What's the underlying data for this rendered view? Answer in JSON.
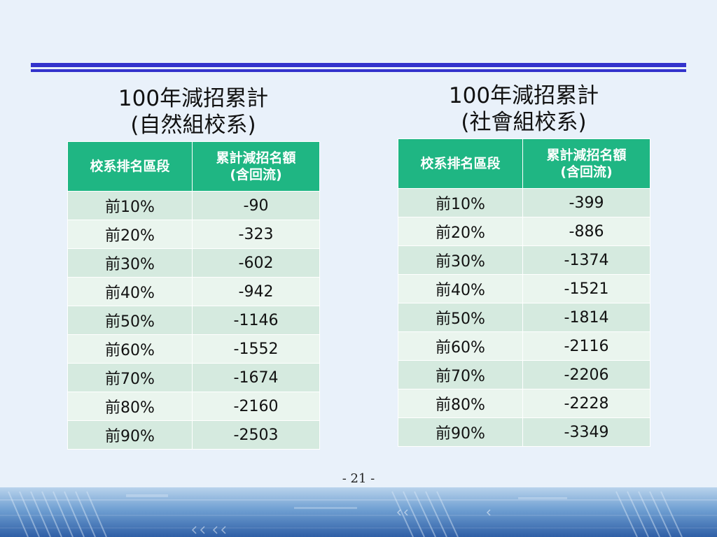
{
  "left_panel": {
    "title_line1": "100年減招累計",
    "title_line2": "(自然組校系)",
    "header_col1": "校系排名區段",
    "header_col2_line1": "累計減招名額",
    "header_col2_line2": "(含回流)",
    "rows": [
      {
        "segment": "前10%",
        "value": "-90"
      },
      {
        "segment": "前20%",
        "value": "-323"
      },
      {
        "segment": "前30%",
        "value": "-602"
      },
      {
        "segment": "前40%",
        "value": "-942"
      },
      {
        "segment": "前50%",
        "value": "-1146"
      },
      {
        "segment": "前60%",
        "value": "-1552"
      },
      {
        "segment": "前70%",
        "value": "-1674"
      },
      {
        "segment": "前80%",
        "value": "-2160"
      },
      {
        "segment": "前90%",
        "value": "-2503"
      }
    ]
  },
  "right_panel": {
    "title_line1": "100年減招累計",
    "title_line2": "(社會組校系)",
    "header_col1": "校系排名區段",
    "header_col2_line1": "累計減招名額",
    "header_col2_line2": "(含回流)",
    "rows": [
      {
        "segment": "前10%",
        "value": "-399"
      },
      {
        "segment": "前20%",
        "value": "-886"
      },
      {
        "segment": "前30%",
        "value": "-1374"
      },
      {
        "segment": "前40%",
        "value": "-1521"
      },
      {
        "segment": "前50%",
        "value": "-1814"
      },
      {
        "segment": "前60%",
        "value": "-2116"
      },
      {
        "segment": "前70%",
        "value": "-2206"
      },
      {
        "segment": "前80%",
        "value": "-2228"
      },
      {
        "segment": "前90%",
        "value": "-3349"
      }
    ]
  },
  "footer": {
    "page_number": "-  21  -"
  },
  "colors": {
    "header_bg": "#1fb683",
    "row_odd": "#d5eadf",
    "row_even": "#eaf5ee",
    "rule": "#3333cc",
    "slide_bg": "#e9f1fa"
  }
}
